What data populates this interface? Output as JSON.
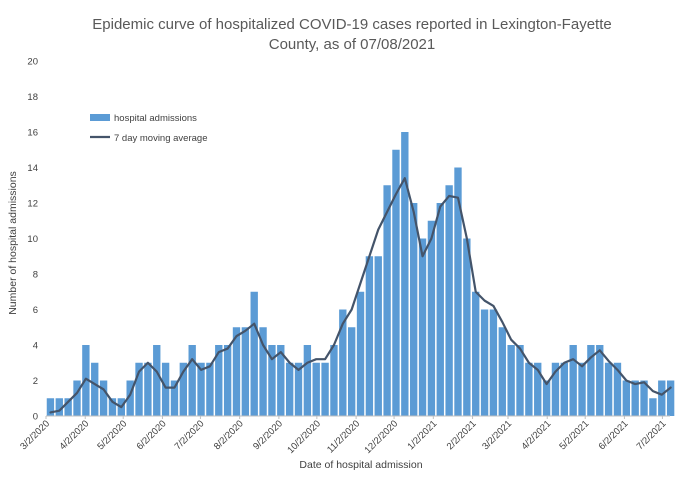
{
  "chart_data": {
    "type": "bar",
    "title": "Epidemic curve of hospitalized COVID-19 cases reported in Lexington-Fayette County, as of 07/08/2021",
    "title_lines": [
      "Epidemic curve of hospitalized COVID-19 cases reported in Lexington-Fayette",
      "County, as of 07/08/2021"
    ],
    "xlabel": "Date of hospital admission",
    "ylabel": "Number of hospital admissions",
    "ylim": [
      0,
      20
    ],
    "yticks": [
      "0",
      "2",
      "4",
      "6",
      "8",
      "10",
      "12",
      "14",
      "16",
      "18",
      "20"
    ],
    "xlim": [
      "2020-03-02",
      "2021-07-08"
    ],
    "xticks": [
      {
        "date": "2020-03-02",
        "label": "3/2/2020"
      },
      {
        "date": "2020-04-02",
        "label": "4/2/2020"
      },
      {
        "date": "2020-05-02",
        "label": "5/2/2020"
      },
      {
        "date": "2020-06-02",
        "label": "6/2/2020"
      },
      {
        "date": "2020-07-02",
        "label": "7/2/2020"
      },
      {
        "date": "2020-08-02",
        "label": "8/2/2020"
      },
      {
        "date": "2020-09-02",
        "label": "9/2/2020"
      },
      {
        "date": "2020-10-02",
        "label": "10/2/2020"
      },
      {
        "date": "2020-11-02",
        "label": "11/2/2020"
      },
      {
        "date": "2020-12-02",
        "label": "12/2/2020"
      },
      {
        "date": "2021-01-02",
        "label": "1/2/2021"
      },
      {
        "date": "2021-02-02",
        "label": "2/2/2021"
      },
      {
        "date": "2021-03-02",
        "label": "3/2/2021"
      },
      {
        "date": "2021-04-02",
        "label": "4/2/2021"
      },
      {
        "date": "2021-05-02",
        "label": "5/2/2021"
      },
      {
        "date": "2021-06-02",
        "label": "6/2/2021"
      },
      {
        "date": "2021-07-02",
        "label": "7/2/2021"
      }
    ],
    "grid": false,
    "legend_position": "top-left",
    "series": [
      {
        "name": "hospital admissions",
        "type": "bar",
        "color": "#5b9bd5",
        "x": [
          "2020-03-02",
          "2020-03-09",
          "2020-03-16",
          "2020-03-23",
          "2020-03-30",
          "2020-04-06",
          "2020-04-13",
          "2020-04-20",
          "2020-04-27",
          "2020-05-04",
          "2020-05-11",
          "2020-05-18",
          "2020-05-25",
          "2020-06-01",
          "2020-06-08",
          "2020-06-15",
          "2020-06-22",
          "2020-06-29",
          "2020-07-06",
          "2020-07-13",
          "2020-07-20",
          "2020-07-27",
          "2020-08-03",
          "2020-08-10",
          "2020-08-17",
          "2020-08-24",
          "2020-08-31",
          "2020-09-07",
          "2020-09-14",
          "2020-09-21",
          "2020-09-28",
          "2020-10-05",
          "2020-10-12",
          "2020-10-19",
          "2020-10-26",
          "2020-11-02",
          "2020-11-09",
          "2020-11-16",
          "2020-11-23",
          "2020-11-30",
          "2020-12-07",
          "2020-12-14",
          "2020-12-21",
          "2020-12-28",
          "2021-01-04",
          "2021-01-11",
          "2021-01-18",
          "2021-01-25",
          "2021-02-01",
          "2021-02-08",
          "2021-02-15",
          "2021-02-22",
          "2021-03-01",
          "2021-03-08",
          "2021-03-15",
          "2021-03-22",
          "2021-03-29",
          "2021-04-05",
          "2021-04-12",
          "2021-04-19",
          "2021-04-26",
          "2021-05-03",
          "2021-05-10",
          "2021-05-17",
          "2021-05-24",
          "2021-05-31",
          "2021-06-07",
          "2021-06-14",
          "2021-06-21",
          "2021-06-28",
          "2021-07-05"
        ],
        "values": [
          1,
          1,
          1,
          2,
          4,
          3,
          2,
          1,
          1,
          2,
          3,
          3,
          4,
          3,
          2,
          3,
          4,
          3,
          3,
          4,
          4,
          5,
          5,
          7,
          5,
          4,
          4,
          3,
          3,
          4,
          3,
          3,
          4,
          6,
          5,
          7,
          9,
          9,
          13,
          15,
          16,
          12,
          10,
          11,
          12,
          13,
          14,
          10,
          7,
          6,
          6,
          5,
          4,
          4,
          3,
          3,
          2,
          3,
          3,
          4,
          3,
          4,
          4,
          3,
          3,
          2,
          2,
          2,
          1,
          2,
          2
        ]
      },
      {
        "name": "7 day moving average",
        "type": "line",
        "color": "#44546a",
        "x": [
          "2020-03-02",
          "2020-03-09",
          "2020-03-16",
          "2020-03-23",
          "2020-03-30",
          "2020-04-06",
          "2020-04-13",
          "2020-04-20",
          "2020-04-27",
          "2020-05-04",
          "2020-05-11",
          "2020-05-18",
          "2020-05-25",
          "2020-06-01",
          "2020-06-08",
          "2020-06-15",
          "2020-06-22",
          "2020-06-29",
          "2020-07-06",
          "2020-07-13",
          "2020-07-20",
          "2020-07-27",
          "2020-08-03",
          "2020-08-10",
          "2020-08-17",
          "2020-08-24",
          "2020-08-31",
          "2020-09-07",
          "2020-09-14",
          "2020-09-21",
          "2020-09-28",
          "2020-10-05",
          "2020-10-12",
          "2020-10-19",
          "2020-10-26",
          "2020-11-02",
          "2020-11-09",
          "2020-11-16",
          "2020-11-23",
          "2020-11-30",
          "2020-12-07",
          "2020-12-14",
          "2020-12-21",
          "2020-12-28",
          "2021-01-04",
          "2021-01-11",
          "2021-01-18",
          "2021-01-25",
          "2021-02-01",
          "2021-02-08",
          "2021-02-15",
          "2021-02-22",
          "2021-03-01",
          "2021-03-08",
          "2021-03-15",
          "2021-03-22",
          "2021-03-29",
          "2021-04-05",
          "2021-04-12",
          "2021-04-19",
          "2021-04-26",
          "2021-05-03",
          "2021-05-10",
          "2021-05-17",
          "2021-05-24",
          "2021-05-31",
          "2021-06-07",
          "2021-06-14",
          "2021-06-21",
          "2021-06-28",
          "2021-07-05"
        ],
        "values": [
          0.2,
          0.3,
          0.8,
          1.3,
          2.1,
          1.8,
          1.5,
          0.8,
          0.5,
          1.2,
          2.5,
          3.0,
          2.5,
          1.6,
          1.6,
          2.5,
          3.2,
          2.6,
          2.8,
          3.6,
          3.8,
          4.5,
          4.8,
          5.2,
          4.0,
          3.2,
          3.6,
          3.0,
          2.6,
          3.0,
          3.2,
          3.2,
          4.0,
          5.2,
          6.0,
          7.5,
          9.0,
          10.5,
          11.5,
          12.5,
          13.4,
          11.5,
          9.0,
          10.0,
          11.8,
          12.4,
          12.3,
          10.0,
          7.0,
          6.5,
          6.2,
          5.3,
          4.3,
          3.8,
          3.0,
          2.6,
          1.8,
          2.5,
          3.0,
          3.2,
          2.8,
          3.3,
          3.7,
          3.1,
          2.6,
          2.0,
          1.8,
          1.9,
          1.4,
          1.2,
          1.6
        ]
      }
    ]
  }
}
